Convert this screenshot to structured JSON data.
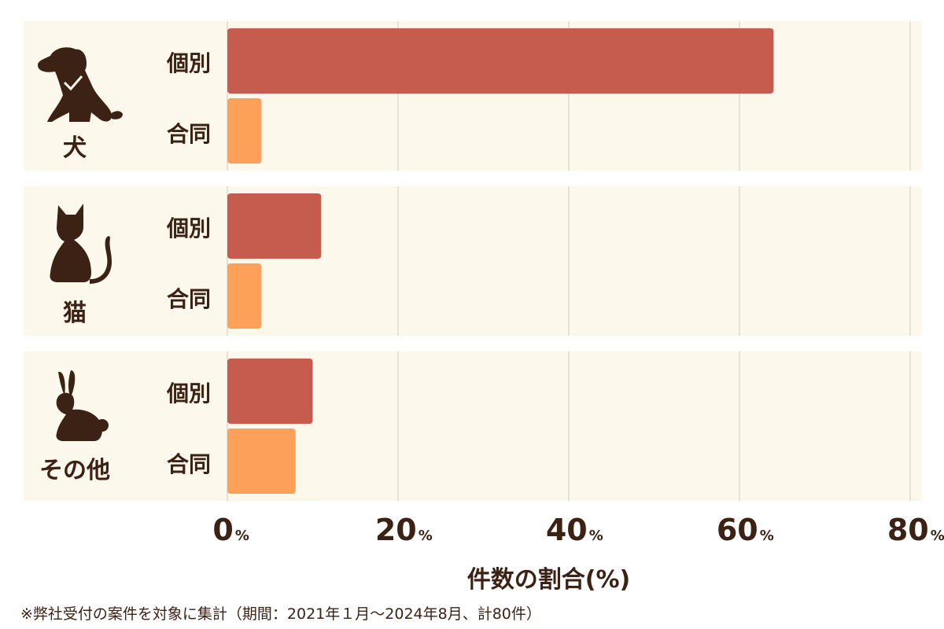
{
  "colors": {
    "individual": "#c55c4e",
    "joint": "#fda05a",
    "panel": "#fdf8ec",
    "text": "#3c2215",
    "grid": "#cfcac0"
  },
  "chart_data": {
    "type": "bar",
    "orientation": "horizontal",
    "groups": [
      {
        "label": "犬",
        "icon": "dog-icon",
        "bars": [
          {
            "label": "個別",
            "value": 64
          },
          {
            "label": "合同",
            "value": 4
          }
        ]
      },
      {
        "label": "猫",
        "icon": "cat-icon",
        "bars": [
          {
            "label": "個別",
            "value": 11
          },
          {
            "label": "合同",
            "value": 4
          }
        ]
      },
      {
        "label": "その他",
        "icon": "rabbit-icon",
        "bars": [
          {
            "label": "個別",
            "value": 10
          },
          {
            "label": "合同",
            "value": 8
          }
        ]
      }
    ],
    "xlim": [
      0,
      80
    ],
    "xticks": [
      0,
      20,
      40,
      60,
      80
    ],
    "tick_unit": "%",
    "xlabel": "件数の割合(%)",
    "grid": true
  },
  "footnote": "※弊社受付の案件を対象に集計（期間：2021年１月〜2024年8月、計80件）"
}
